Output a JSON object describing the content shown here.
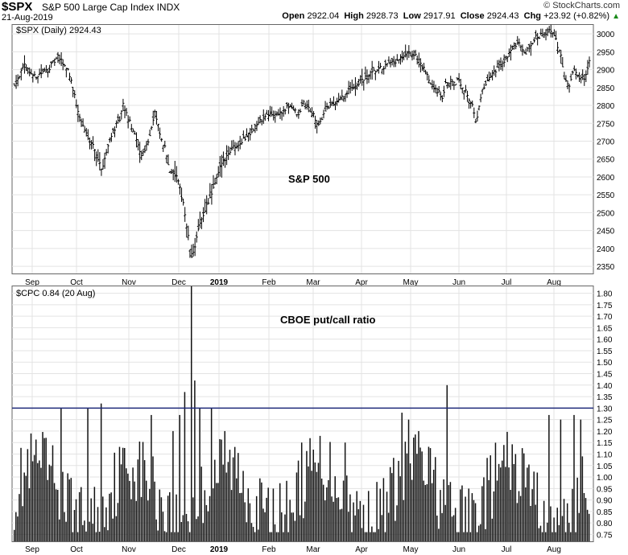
{
  "header": {
    "symbol": "$SPX",
    "description": "S&P 500 Large Cap Index",
    "exchange": "INDX",
    "date": "21-Aug-2019",
    "brand": "© StockCharts.com",
    "open_label": "Open",
    "open": "2922.04",
    "high_label": "High",
    "high": "2928.73",
    "low_label": "Low",
    "low": "2917.91",
    "close_label": "Close",
    "close": "2924.43",
    "chg_label": "Chg",
    "chg": "+23.92 (+0.82%)"
  },
  "colors": {
    "bars": "#000000",
    "put_call_fill": "#111111",
    "ref_line": "#1f2a7a",
    "grid": "#e3e3e3"
  },
  "chart_data": [
    {
      "type": "ohlc",
      "legend": "$SPX (Daily) 2924.43",
      "annotation": "S&P 500",
      "ylim": [
        2330,
        3025
      ],
      "yticks": [
        2350,
        2400,
        2450,
        2500,
        2550,
        2600,
        2650,
        2700,
        2750,
        2800,
        2850,
        2900,
        2950,
        3000
      ],
      "xticks": [
        "Sep",
        "Oct",
        "Nov",
        "Dec",
        "2019",
        "Feb",
        "Mar",
        "Apr",
        "May",
        "Jun",
        "Jul",
        "Aug"
      ],
      "anchors": [
        [
          0,
          2860
        ],
        [
          6,
          2910
        ],
        [
          12,
          2880
        ],
        [
          20,
          2900
        ],
        [
          26,
          2935
        ],
        [
          32,
          2900
        ],
        [
          34,
          2870
        ],
        [
          38,
          2780
        ],
        [
          42,
          2730
        ],
        [
          48,
          2680
        ],
        [
          52,
          2620
        ],
        [
          58,
          2720
        ],
        [
          63,
          2760
        ],
        [
          65,
          2800
        ],
        [
          70,
          2740
        ],
        [
          76,
          2660
        ],
        [
          80,
          2700
        ],
        [
          84,
          2780
        ],
        [
          88,
          2700
        ],
        [
          90,
          2680
        ],
        [
          93,
          2620
        ],
        [
          97,
          2600
        ],
        [
          101,
          2530
        ],
        [
          103,
          2460
        ],
        [
          106,
          2370
        ],
        [
          110,
          2450
        ],
        [
          114,
          2510
        ],
        [
          118,
          2550
        ],
        [
          124,
          2640
        ],
        [
          130,
          2680
        ],
        [
          136,
          2700
        ],
        [
          142,
          2730
        ],
        [
          150,
          2770
        ],
        [
          160,
          2780
        ],
        [
          165,
          2800
        ],
        [
          170,
          2770
        ],
        [
          173,
          2810
        ],
        [
          178,
          2780
        ],
        [
          182,
          2740
        ],
        [
          186,
          2790
        ],
        [
          192,
          2810
        ],
        [
          196,
          2820
        ],
        [
          202,
          2850
        ],
        [
          208,
          2870
        ],
        [
          214,
          2890
        ],
        [
          222,
          2910
        ],
        [
          230,
          2925
        ],
        [
          236,
          2945
        ],
        [
          241,
          2935
        ],
        [
          244,
          2910
        ],
        [
          248,
          2870
        ],
        [
          252,
          2850
        ],
        [
          256,
          2820
        ],
        [
          258,
          2860
        ],
        [
          262,
          2860
        ],
        [
          266,
          2870
        ],
        [
          270,
          2840
        ],
        [
          274,
          2800
        ],
        [
          276,
          2750
        ],
        [
          280,
          2840
        ],
        [
          286,
          2890
        ],
        [
          292,
          2920
        ],
        [
          298,
          2960
        ],
        [
          302,
          2970
        ],
        [
          305,
          2940
        ],
        [
          308,
          2960
        ],
        [
          312,
          2990
        ],
        [
          316,
          3000
        ],
        [
          321,
          3010
        ],
        [
          324,
          2980
        ],
        [
          327,
          2940
        ],
        [
          329,
          2880
        ],
        [
          332,
          2860
        ],
        [
          335,
          2900
        ],
        [
          338,
          2880
        ],
        [
          341,
          2880
        ],
        [
          344,
          2920
        ]
      ]
    },
    {
      "type": "bar",
      "legend": "$CPC 0.84 (20 Aug)",
      "annotation": "CBOE put/call ratio",
      "ylim": [
        0.72,
        1.83
      ],
      "yticks": [
        0.75,
        0.8,
        0.85,
        0.9,
        0.95,
        1.0,
        1.05,
        1.1,
        1.15,
        1.2,
        1.25,
        1.3,
        1.35,
        1.4,
        1.45,
        1.5,
        1.55,
        1.6,
        1.65,
        1.7,
        1.75,
        1.8
      ],
      "reference_line": 1.3,
      "xticks": [
        "Sep",
        "Oct",
        "Nov",
        "Dec",
        "2019",
        "Feb",
        "Mar",
        "Apr",
        "May",
        "Jun",
        "Jul",
        "Aug"
      ],
      "count": 345,
      "spikes": [
        [
          28,
          1.3
        ],
        [
          44,
          1.3
        ],
        [
          52,
          1.32
        ],
        [
          82,
          1.27
        ],
        [
          95,
          1.2
        ],
        [
          99,
          1.27
        ],
        [
          102,
          1.37
        ],
        [
          106,
          1.83
        ],
        [
          108,
          1.42
        ],
        [
          111,
          1.3
        ],
        [
          118,
          1.3
        ],
        [
          126,
          1.2
        ],
        [
          172,
          1.15
        ],
        [
          198,
          1.15
        ],
        [
          232,
          1.28
        ],
        [
          236,
          1.25
        ],
        [
          242,
          1.2
        ],
        [
          259,
          1.4
        ],
        [
          300,
          1.1
        ],
        [
          320,
          1.27
        ],
        [
          327,
          1.25
        ],
        [
          335,
          1.27
        ],
        [
          339,
          1.25
        ]
      ]
    }
  ]
}
